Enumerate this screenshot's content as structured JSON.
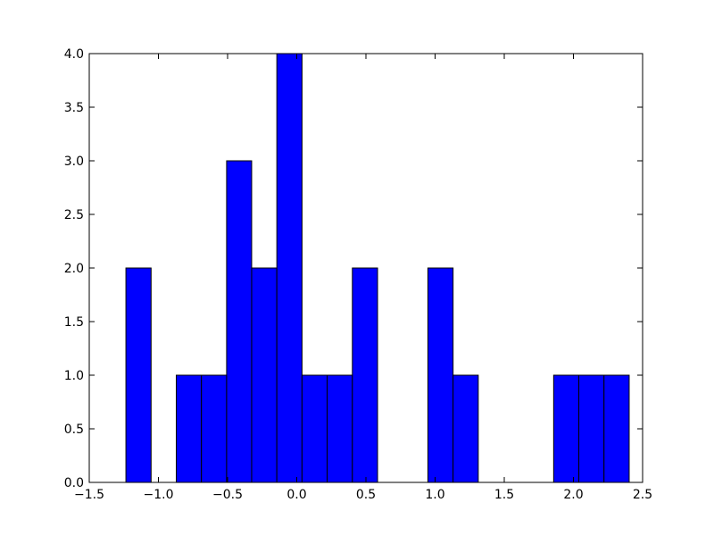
{
  "chart_data": {
    "type": "histogram",
    "bins": [
      -1.235,
      -1.053,
      -0.871,
      -0.689,
      -0.507,
      -0.326,
      -0.144,
      0.038,
      0.22,
      0.402,
      0.584,
      0.766,
      0.948,
      1.13,
      1.312,
      1.493,
      1.675,
      1.857,
      2.039,
      2.221,
      2.403
    ],
    "counts": [
      2,
      0,
      1,
      1,
      3,
      2,
      4,
      1,
      1,
      2,
      0,
      0,
      2,
      1,
      0,
      0,
      0,
      1,
      1,
      1
    ],
    "color": "#0000ff",
    "xlim": [
      -1.5,
      2.5
    ],
    "xticks": [
      {
        "value": -1.5,
        "label": "−1.5"
      },
      {
        "value": -1.0,
        "label": "−1.0"
      },
      {
        "value": -0.5,
        "label": "−0.5"
      },
      {
        "value": 0,
        "label": "0.0"
      },
      {
        "value": 0.5,
        "label": "0.5"
      },
      {
        "value": 1.0,
        "label": "1.0"
      },
      {
        "value": 1.5,
        "label": "1.5"
      },
      {
        "value": 2.0,
        "label": "2.0"
      },
      {
        "value": 2.5,
        "label": "2.5"
      }
    ],
    "ylim": [
      0,
      4
    ],
    "yticks": [
      {
        "value": 0,
        "label": "0.0"
      },
      {
        "value": 0.5,
        "label": "0.5"
      },
      {
        "value": 1.0,
        "label": "1.0"
      },
      {
        "value": 1.5,
        "label": "1.5"
      },
      {
        "value": 2.0,
        "label": "2.0"
      },
      {
        "value": 2.5,
        "label": "2.5"
      },
      {
        "value": 3.0,
        "label": "3.0"
      },
      {
        "value": 3.5,
        "label": "3.5"
      },
      {
        "value": 4.0,
        "label": "4.0"
      }
    ],
    "grid": false
  }
}
